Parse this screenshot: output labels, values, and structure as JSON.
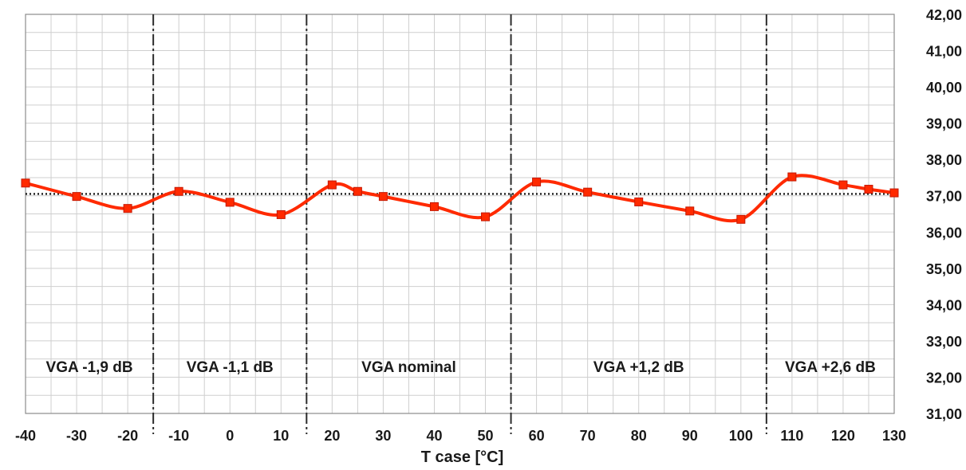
{
  "chart_data": {
    "type": "line",
    "xlabel": "T case [°C]",
    "ylabel": "",
    "xlim": [
      -40,
      130
    ],
    "ylim": [
      31,
      42
    ],
    "x_ticks": [
      "-40",
      "-30",
      "-20",
      "-10",
      "0",
      "10",
      "20",
      "30",
      "40",
      "50",
      "60",
      "70",
      "80",
      "90",
      "100",
      "110",
      "120",
      "130"
    ],
    "y_ticks": [
      "31,00",
      "32,00",
      "33,00",
      "34,00",
      "35,00",
      "36,00",
      "37,00",
      "38,00",
      "39,00",
      "40,00",
      "41,00",
      "42,00"
    ],
    "y_axis_side": "right",
    "grid": true,
    "line_color": "#ff2a00",
    "series": [
      {
        "segments": [
          {
            "x": [
              -40,
              -30,
              -20
            ],
            "y": [
              37.35,
              36.98,
              36.65
            ]
          },
          {
            "x": [
              -10,
              0,
              10
            ],
            "y": [
              37.12,
              36.82,
              36.48
            ]
          },
          {
            "x": [
              20,
              25,
              30,
              40,
              50
            ],
            "y": [
              37.3,
              37.12,
              36.98,
              36.7,
              36.42
            ]
          },
          {
            "x": [
              60,
              70,
              80,
              90,
              100
            ],
            "y": [
              37.38,
              37.1,
              36.83,
              36.58,
              36.35
            ]
          },
          {
            "x": [
              110,
              120,
              125,
              130
            ],
            "y": [
              37.52,
              37.3,
              37.18,
              37.08
            ]
          }
        ]
      }
    ],
    "reference_line": {
      "y": 37.05,
      "style": "dotted",
      "color": "#1a1a1a"
    },
    "region_dividers": {
      "x": [
        -15,
        15,
        55,
        105
      ],
      "style": "dash-dot"
    },
    "regions": [
      {
        "label": "VGA -1,9 dB",
        "x_start": -40,
        "x_end": -15
      },
      {
        "label": "VGA -1,1 dB",
        "x_start": -15,
        "x_end": 15
      },
      {
        "label": "VGA nominal",
        "x_start": 15,
        "x_end": 55
      },
      {
        "label": "VGA +1,2 dB",
        "x_start": 55,
        "x_end": 105
      },
      {
        "label": "VGA +2,6 dB",
        "x_start": 105,
        "x_end": 130
      }
    ]
  }
}
